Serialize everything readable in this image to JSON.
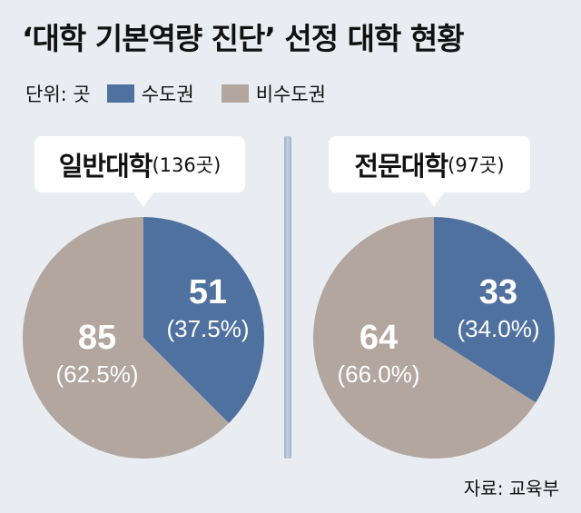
{
  "title": "‘대학 기본역량 진단’ 선정 대학 현황",
  "legend": {
    "unit": "단위: 곳",
    "items": [
      {
        "label": "수도권",
        "color": "#4f71a0"
      },
      {
        "label": "비수도권",
        "color": "#b2a69f"
      }
    ]
  },
  "source": "자료: 교육부",
  "chart_data": [
    {
      "type": "pie",
      "title": "일반대학",
      "title_note": "(136곳)",
      "slices": [
        {
          "label": "수도권",
          "value": 51,
          "percent": "37.5%",
          "value_text": "51",
          "percent_text": "(37.5%)",
          "color": "#4f71a0"
        },
        {
          "label": "비수도권",
          "value": 85,
          "percent": "62.5%",
          "value_text": "85",
          "percent_text": "(62.5%)",
          "color": "#b2a69f"
        }
      ]
    },
    {
      "type": "pie",
      "title": "전문대학",
      "title_note": "(97곳)",
      "slices": [
        {
          "label": "수도권",
          "value": 33,
          "percent": "34.0%",
          "value_text": "33",
          "percent_text": "(34.0%)",
          "color": "#4f71a0"
        },
        {
          "label": "비수도권",
          "value": 64,
          "percent": "66.0%",
          "value_text": "64",
          "percent_text": "(66.0%)",
          "color": "#b2a69f"
        }
      ]
    }
  ]
}
